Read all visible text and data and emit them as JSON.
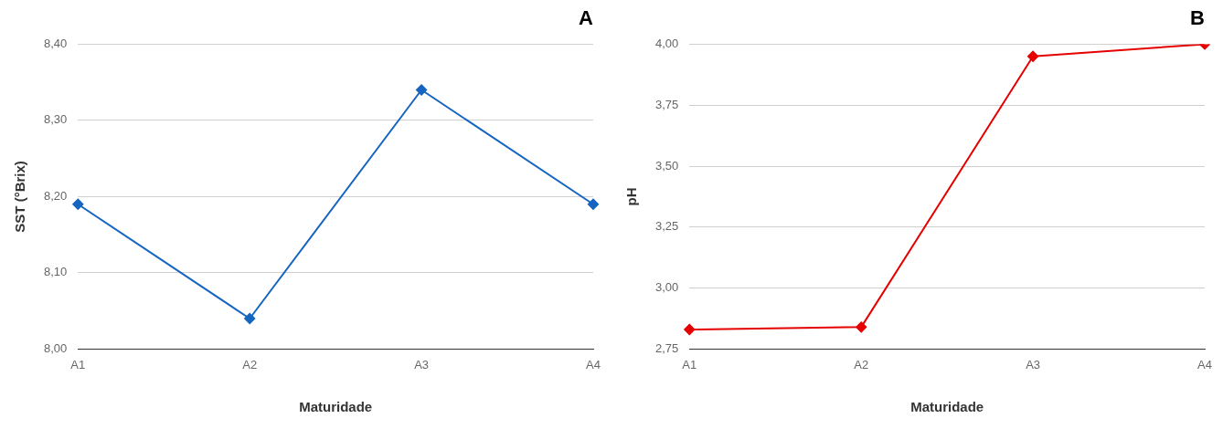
{
  "chart_data": [
    {
      "type": "line",
      "title": "A",
      "xlabel": "Maturidade",
      "ylabel": "SST (°Brix)",
      "categories": [
        "A1",
        "A2",
        "A3",
        "A4"
      ],
      "series": [
        {
          "color": "#1565c0",
          "values": [
            8.19,
            8.04,
            8.34,
            8.19
          ]
        }
      ],
      "ylim": [
        8.0,
        8.4
      ],
      "yticks": [
        {
          "value": 8.0,
          "label": "8,00"
        },
        {
          "value": 8.1,
          "label": "8,10"
        },
        {
          "value": 8.2,
          "label": "8,20"
        },
        {
          "value": 8.3,
          "label": "8,30"
        },
        {
          "value": 8.4,
          "label": "8,40"
        }
      ],
      "grid": "y",
      "marker": "diamond",
      "line_style": "solid",
      "legend": false
    },
    {
      "type": "line",
      "title": "B",
      "xlabel": "Maturidade",
      "ylabel": "pH",
      "categories": [
        "A1",
        "A2",
        "A3",
        "A4"
      ],
      "series": [
        {
          "color": "#e60000",
          "values": [
            2.83,
            2.84,
            3.95,
            4.0
          ]
        }
      ],
      "ylim": [
        2.75,
        4.0
      ],
      "yticks": [
        {
          "value": 2.75,
          "label": "2,75"
        },
        {
          "value": 3.0,
          "label": "3,00"
        },
        {
          "value": 3.25,
          "label": "3,25"
        },
        {
          "value": 3.5,
          "label": "3,50"
        },
        {
          "value": 3.75,
          "label": "3,75"
        },
        {
          "value": 4.0,
          "label": "4,00"
        }
      ],
      "grid": "y",
      "marker": "diamond",
      "line_style": "solid",
      "legend": false
    }
  ]
}
